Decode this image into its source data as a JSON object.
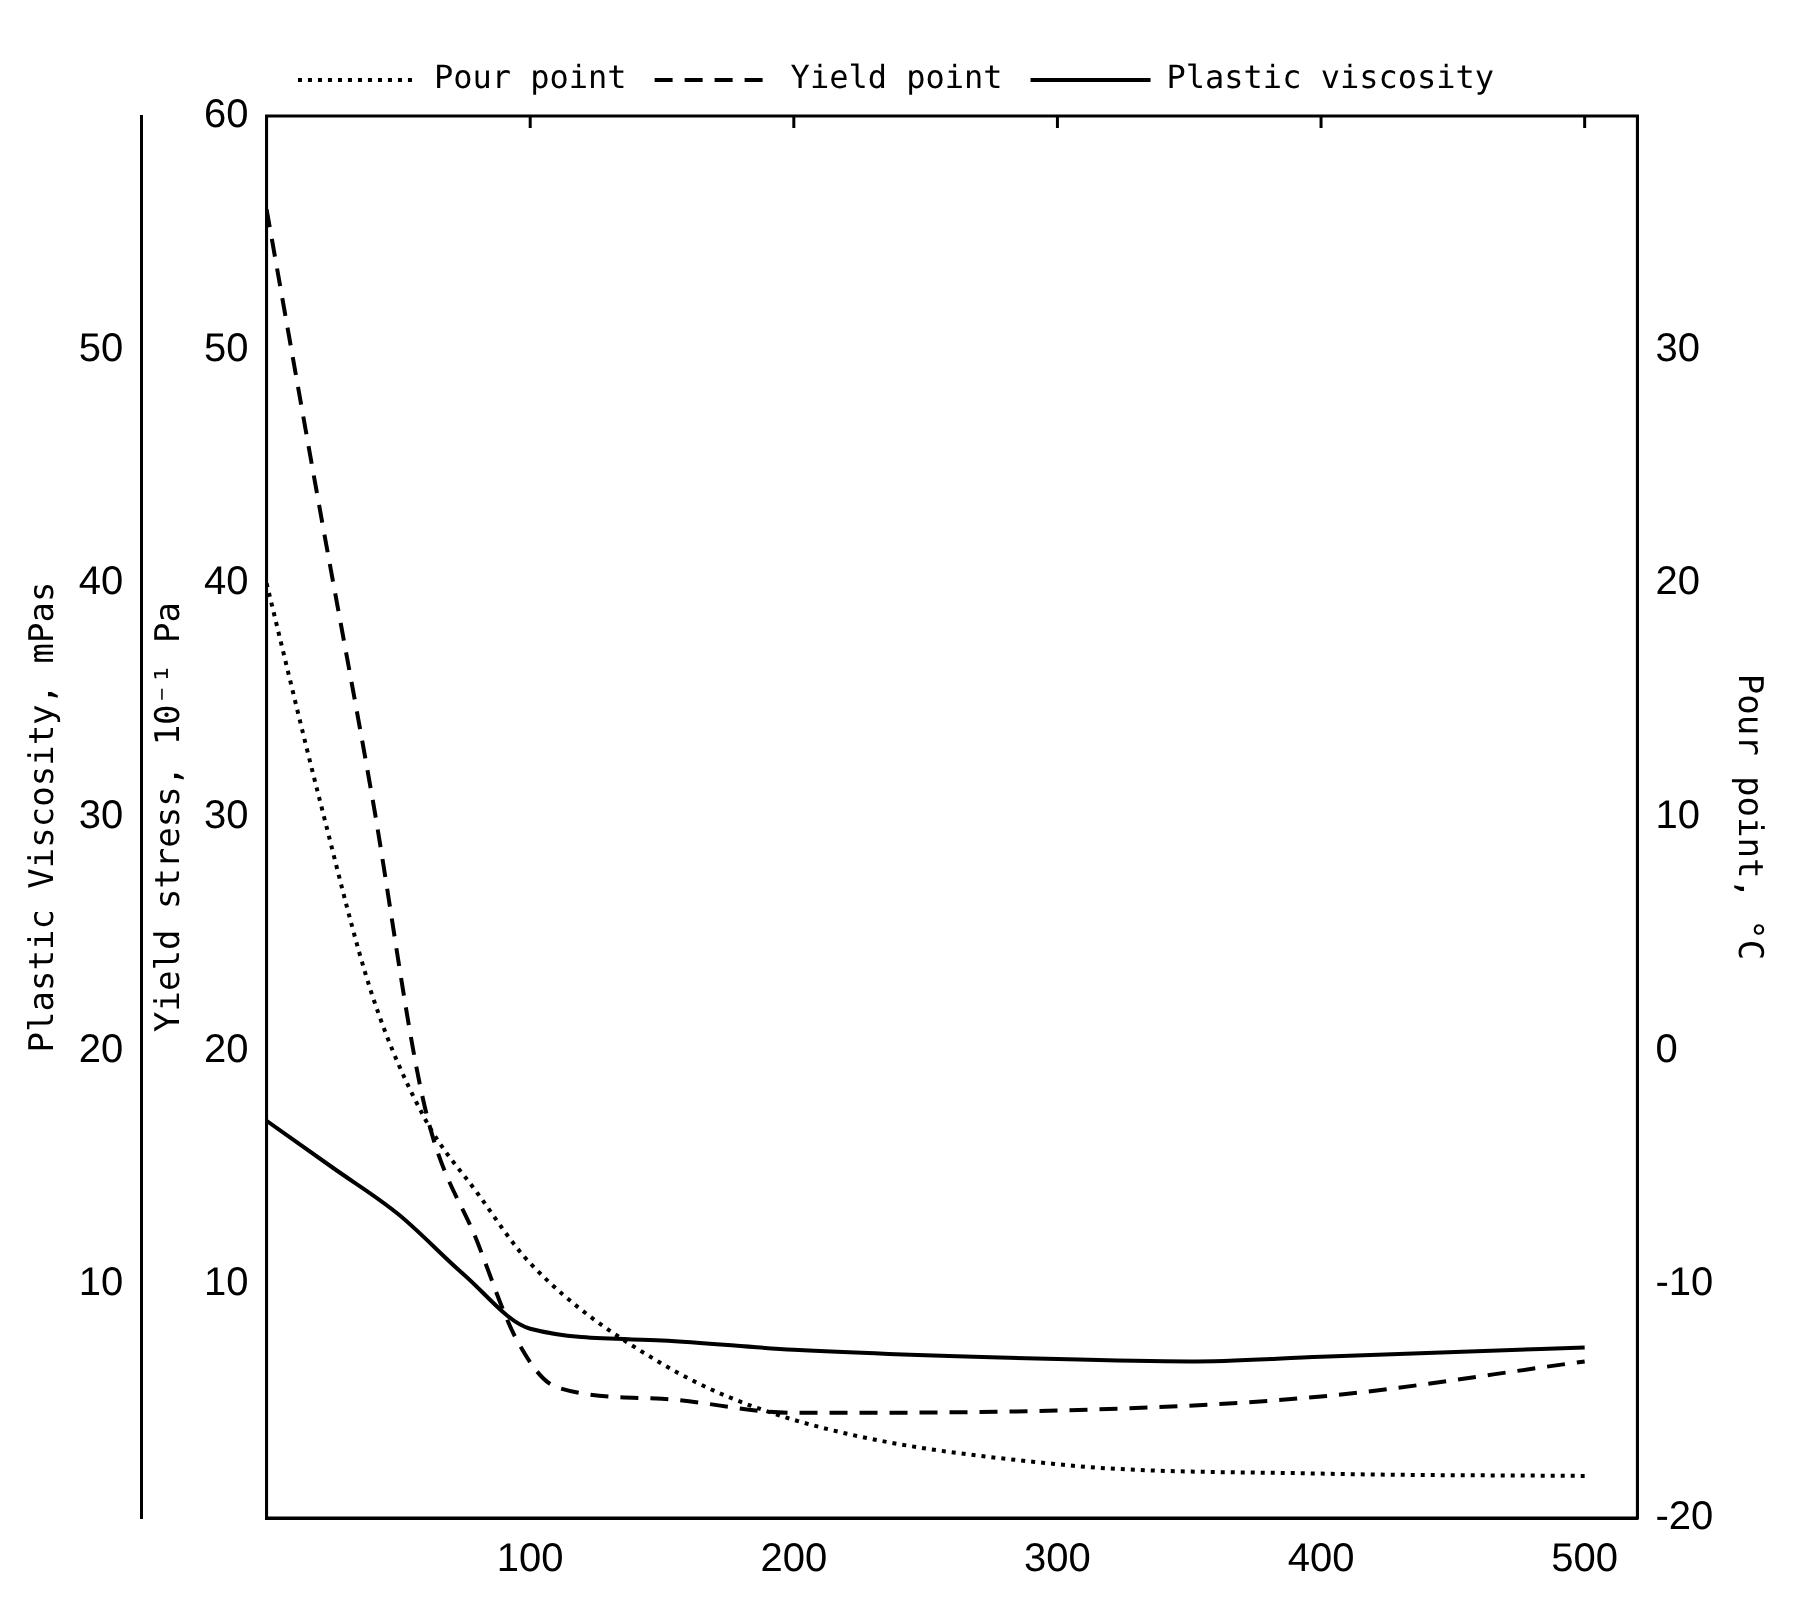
{
  "chart_data": {
    "type": "line",
    "ylabel": "Yield stress, 10⁻¹ Pa",
    "y2label": "Pour point, °C",
    "y3label": "Plastic Viscosity, mPas",
    "xlim": [
      0,
      520
    ],
    "xticks": [
      100,
      200,
      300,
      400,
      500
    ],
    "ylim": [
      0,
      60
    ],
    "yticks": [
      10,
      20,
      30,
      40,
      50,
      60
    ],
    "y2lim": [
      -20,
      40
    ],
    "y2ticks": [
      -20,
      -10,
      0,
      10,
      20,
      30
    ],
    "y3lim": [
      0,
      60
    ],
    "y3ticks": [
      10,
      20,
      30,
      40,
      50
    ],
    "grid": false,
    "legend": "top",
    "series": [
      {
        "name": "Pour point",
        "color": "#000000",
        "axis": "y2",
        "line_style": "dotted",
        "x": [
          0,
          20,
          40,
          60,
          80,
          100,
          150,
          200,
          300,
          400,
          500
        ],
        "values": [
          20,
          10.8,
          2.4,
          -2.9,
          -6.1,
          -9.1,
          -13.4,
          -15.8,
          -17.7,
          -18.1,
          -18.2
        ]
      },
      {
        "name": "Yield point",
        "color": "#000000",
        "axis": "y",
        "line_style": "dashed",
        "x": [
          0,
          20,
          40,
          60,
          80,
          95,
          110,
          150,
          200,
          300,
          400,
          500
        ],
        "values": [
          56,
          43.3,
          30.9,
          17.6,
          11.8,
          7.6,
          5.6,
          5.1,
          4.5,
          4.6,
          5.2,
          6.7
        ]
      },
      {
        "name": "Plastic viscosity",
        "color": "#000000",
        "axis": "y3",
        "line_style": "solid",
        "x": [
          0,
          25,
          50,
          75,
          100,
          150,
          200,
          300,
          350,
          400,
          500
        ],
        "values": [
          17,
          15,
          13,
          10.4,
          8.1,
          7.6,
          7.2,
          6.8,
          6.7,
          6.9,
          7.3
        ]
      }
    ]
  }
}
